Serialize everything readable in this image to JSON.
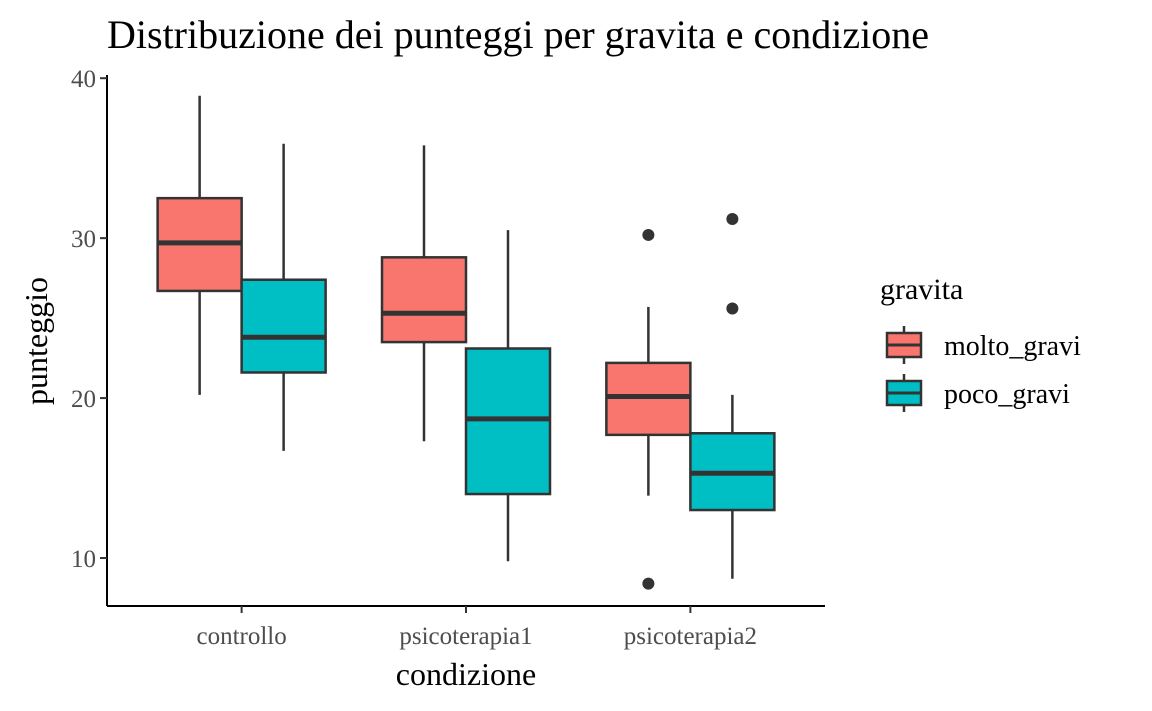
{
  "chart_data": {
    "type": "boxplot",
    "title": "Distribuzione dei punteggi per gravita e condizione",
    "xlabel": "condizione",
    "ylabel": "punteggio",
    "categories": [
      "controllo",
      "psicoterapia1",
      "psicoterapia2"
    ],
    "ylim": [
      7,
      40.2
    ],
    "yticks": [
      10,
      20,
      30,
      40
    ],
    "ytick_labels": [
      "10",
      "20",
      "30",
      "40"
    ],
    "grid": false,
    "legend": {
      "title": "gravita",
      "position": "right"
    },
    "series": [
      {
        "name": "molto_gravi",
        "color": "#F8766D",
        "boxes": [
          {
            "whisker_low": 20.2,
            "q1": 26.7,
            "median": 29.7,
            "q3": 32.5,
            "whisker_high": 38.9,
            "outliers": []
          },
          {
            "whisker_low": 17.3,
            "q1": 23.5,
            "median": 25.3,
            "q3": 28.8,
            "whisker_high": 35.8,
            "outliers": []
          },
          {
            "whisker_low": 13.9,
            "q1": 17.7,
            "median": 20.1,
            "q3": 22.2,
            "whisker_high": 25.7,
            "outliers": [
              30.2,
              8.4
            ]
          }
        ]
      },
      {
        "name": "poco_gravi",
        "color": "#00BFC4",
        "boxes": [
          {
            "whisker_low": 16.7,
            "q1": 21.6,
            "median": 23.8,
            "q3": 27.4,
            "whisker_high": 35.9,
            "outliers": []
          },
          {
            "whisker_low": 9.8,
            "q1": 14.0,
            "median": 18.7,
            "q3": 23.1,
            "whisker_high": 30.5,
            "outliers": []
          },
          {
            "whisker_low": 8.7,
            "q1": 13.0,
            "median": 15.3,
            "q3": 17.8,
            "whisker_high": 20.2,
            "outliers": [
              31.2,
              25.6
            ]
          }
        ]
      }
    ]
  }
}
